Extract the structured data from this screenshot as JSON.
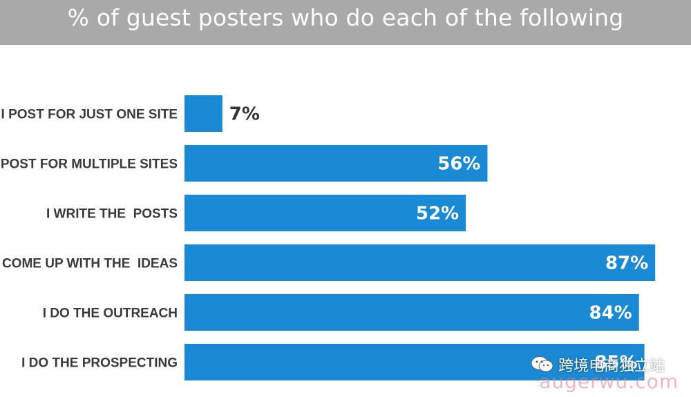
{
  "title": "% of guest posters who do each of the following",
  "colors": {
    "header_bg": "#a9a9a9",
    "bar": "#1a8ad4",
    "value_inside": "#ffffff",
    "value_outside": "#333333"
  },
  "chart_data": {
    "type": "bar",
    "orientation": "horizontal",
    "title": "% of guest posters who do each of the following",
    "categories": [
      "I POST FOR JUST ONE SITE",
      "I POST FOR MULTIPLE SITES",
      "I WRITE THE  POSTS",
      "I COME UP WITH THE  IDEAS",
      "I DO THE OUTREACH",
      "I DO THE PROSPECTING"
    ],
    "values": [
      7,
      56,
      52,
      87,
      84,
      85
    ],
    "value_labels": [
      "7%",
      "56%",
      "52%",
      "87%",
      "84%",
      "85%"
    ],
    "xlim": [
      0,
      100
    ],
    "grid": false,
    "legend": "none"
  },
  "watermark": {
    "text": "跨境电商独立站",
    "url": "augerwu.com",
    "icon": "wechat-icon"
  }
}
